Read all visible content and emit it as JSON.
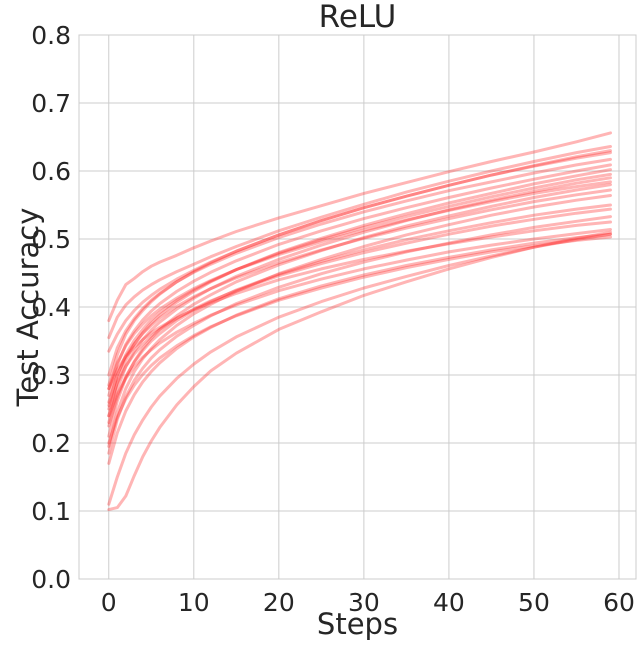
{
  "chart_data": {
    "type": "line",
    "title": "ReLU",
    "xlabel": "Steps",
    "ylabel": "Test Accuracy",
    "xlim": [
      -3.5,
      62
    ],
    "ylim": [
      0.0,
      0.8
    ],
    "xticks": [
      "0",
      "10",
      "20",
      "30",
      "40",
      "50",
      "60"
    ],
    "xtick_values": [
      0,
      10,
      20,
      30,
      40,
      50,
      60
    ],
    "yticks": [
      "0.0",
      "0.1",
      "0.2",
      "0.3",
      "0.4",
      "0.5",
      "0.6",
      "0.7",
      "0.8"
    ],
    "ytick_values": [
      0.0,
      0.1,
      0.2,
      0.3,
      0.4,
      0.5,
      0.6,
      0.7,
      0.8
    ],
    "grid": true,
    "line_color": "#ff2a2a",
    "line_opacity": 0.35,
    "x": [
      0,
      1,
      2,
      3,
      4,
      5,
      6,
      8,
      10,
      12,
      15,
      20,
      25,
      30,
      35,
      40,
      45,
      50,
      55,
      59
    ],
    "series": [
      {
        "values": [
          0.38,
          0.41,
          0.433,
          0.442,
          0.452,
          0.46,
          0.466,
          0.476,
          0.487,
          0.497,
          0.511,
          0.531,
          0.549,
          0.567,
          0.583,
          0.599,
          0.614,
          0.628,
          0.643,
          0.656
        ]
      },
      {
        "values": [
          0.355,
          0.385,
          0.403,
          0.415,
          0.425,
          0.433,
          0.44,
          0.452,
          0.463,
          0.474,
          0.489,
          0.512,
          0.532,
          0.551,
          0.569,
          0.585,
          0.6,
          0.614,
          0.627,
          0.636
        ]
      },
      {
        "values": [
          0.335,
          0.36,
          0.38,
          0.395,
          0.407,
          0.417,
          0.426,
          0.441,
          0.454,
          0.466,
          0.482,
          0.506,
          0.527,
          0.546,
          0.563,
          0.579,
          0.594,
          0.608,
          0.621,
          0.63
        ]
      },
      {
        "values": [
          0.285,
          0.33,
          0.36,
          0.38,
          0.395,
          0.408,
          0.419,
          0.437,
          0.452,
          0.465,
          0.482,
          0.506,
          0.527,
          0.546,
          0.563,
          0.579,
          0.594,
          0.607,
          0.619,
          0.627
        ]
      },
      {
        "values": [
          0.3,
          0.34,
          0.365,
          0.383,
          0.398,
          0.41,
          0.42,
          0.437,
          0.451,
          0.463,
          0.479,
          0.502,
          0.522,
          0.54,
          0.556,
          0.571,
          0.584,
          0.597,
          0.609,
          0.617
        ]
      },
      {
        "values": [
          0.27,
          0.315,
          0.345,
          0.365,
          0.381,
          0.394,
          0.405,
          0.423,
          0.438,
          0.451,
          0.468,
          0.492,
          0.512,
          0.53,
          0.546,
          0.561,
          0.575,
          0.588,
          0.6,
          0.609
        ]
      },
      {
        "values": [
          0.24,
          0.29,
          0.322,
          0.345,
          0.362,
          0.376,
          0.388,
          0.407,
          0.423,
          0.437,
          0.455,
          0.48,
          0.501,
          0.52,
          0.537,
          0.553,
          0.567,
          0.581,
          0.593,
          0.602
        ]
      },
      {
        "values": [
          0.255,
          0.3,
          0.33,
          0.351,
          0.367,
          0.381,
          0.392,
          0.41,
          0.425,
          0.438,
          0.455,
          0.479,
          0.499,
          0.517,
          0.533,
          0.548,
          0.562,
          0.575,
          0.587,
          0.595
        ]
      },
      {
        "values": [
          0.23,
          0.28,
          0.312,
          0.335,
          0.352,
          0.366,
          0.378,
          0.397,
          0.413,
          0.427,
          0.445,
          0.47,
          0.491,
          0.51,
          0.527,
          0.543,
          0.557,
          0.57,
          0.582,
          0.59
        ]
      },
      {
        "values": [
          0.28,
          0.318,
          0.343,
          0.361,
          0.375,
          0.387,
          0.397,
          0.413,
          0.427,
          0.439,
          0.455,
          0.477,
          0.496,
          0.513,
          0.528,
          0.542,
          0.555,
          0.567,
          0.577,
          0.584
        ]
      },
      {
        "values": [
          0.21,
          0.262,
          0.296,
          0.32,
          0.339,
          0.354,
          0.367,
          0.387,
          0.404,
          0.418,
          0.437,
          0.462,
          0.483,
          0.502,
          0.519,
          0.534,
          0.548,
          0.561,
          0.572,
          0.58
        ]
      },
      {
        "values": [
          0.26,
          0.3,
          0.327,
          0.346,
          0.361,
          0.373,
          0.384,
          0.401,
          0.415,
          0.427,
          0.443,
          0.465,
          0.484,
          0.501,
          0.516,
          0.53,
          0.543,
          0.555,
          0.565,
          0.572
        ]
      },
      {
        "values": [
          0.195,
          0.245,
          0.28,
          0.305,
          0.324,
          0.339,
          0.352,
          0.373,
          0.39,
          0.404,
          0.423,
          0.449,
          0.47,
          0.489,
          0.506,
          0.521,
          0.535,
          0.547,
          0.557,
          0.564
        ]
      },
      {
        "values": [
          0.225,
          0.268,
          0.298,
          0.319,
          0.336,
          0.35,
          0.361,
          0.38,
          0.395,
          0.408,
          0.425,
          0.448,
          0.467,
          0.484,
          0.499,
          0.512,
          0.524,
          0.535,
          0.544,
          0.55
        ]
      },
      {
        "values": [
          0.25,
          0.288,
          0.313,
          0.331,
          0.345,
          0.357,
          0.367,
          0.383,
          0.397,
          0.409,
          0.424,
          0.446,
          0.464,
          0.48,
          0.494,
          0.507,
          0.519,
          0.529,
          0.538,
          0.544
        ]
      },
      {
        "values": [
          0.185,
          0.235,
          0.268,
          0.292,
          0.31,
          0.325,
          0.337,
          0.357,
          0.373,
          0.387,
          0.405,
          0.429,
          0.449,
          0.466,
          0.481,
          0.494,
          0.506,
          0.517,
          0.526,
          0.533
        ]
      },
      {
        "values": [
          0.28,
          0.308,
          0.327,
          0.341,
          0.352,
          0.362,
          0.37,
          0.384,
          0.396,
          0.406,
          0.42,
          0.44,
          0.456,
          0.47,
          0.482,
          0.493,
          0.503,
          0.512,
          0.52,
          0.525
        ]
      },
      {
        "values": [
          0.24,
          0.272,
          0.295,
          0.312,
          0.326,
          0.337,
          0.347,
          0.363,
          0.376,
          0.388,
          0.403,
          0.424,
          0.441,
          0.456,
          0.469,
          0.481,
          0.491,
          0.5,
          0.508,
          0.514
        ]
      },
      {
        "values": [
          0.17,
          0.215,
          0.247,
          0.271,
          0.29,
          0.305,
          0.318,
          0.339,
          0.356,
          0.37,
          0.388,
          0.412,
          0.431,
          0.447,
          0.461,
          0.473,
          0.484,
          0.494,
          0.502,
          0.507
        ]
      },
      {
        "values": [
          0.2,
          0.238,
          0.265,
          0.285,
          0.301,
          0.314,
          0.325,
          0.343,
          0.358,
          0.371,
          0.387,
          0.41,
          0.428,
          0.444,
          0.458,
          0.47,
          0.481,
          0.49,
          0.498,
          0.503
        ]
      },
      {
        "values": [
          0.11,
          0.15,
          0.185,
          0.212,
          0.234,
          0.253,
          0.269,
          0.295,
          0.316,
          0.334,
          0.356,
          0.385,
          0.408,
          0.428,
          0.445,
          0.461,
          0.475,
          0.488,
          0.499,
          0.507
        ]
      },
      {
        "values": [
          0.102,
          0.105,
          0.122,
          0.152,
          0.18,
          0.203,
          0.223,
          0.256,
          0.283,
          0.306,
          0.332,
          0.367,
          0.393,
          0.417,
          0.437,
          0.456,
          0.473,
          0.488,
          0.501,
          0.51
        ]
      }
    ]
  }
}
